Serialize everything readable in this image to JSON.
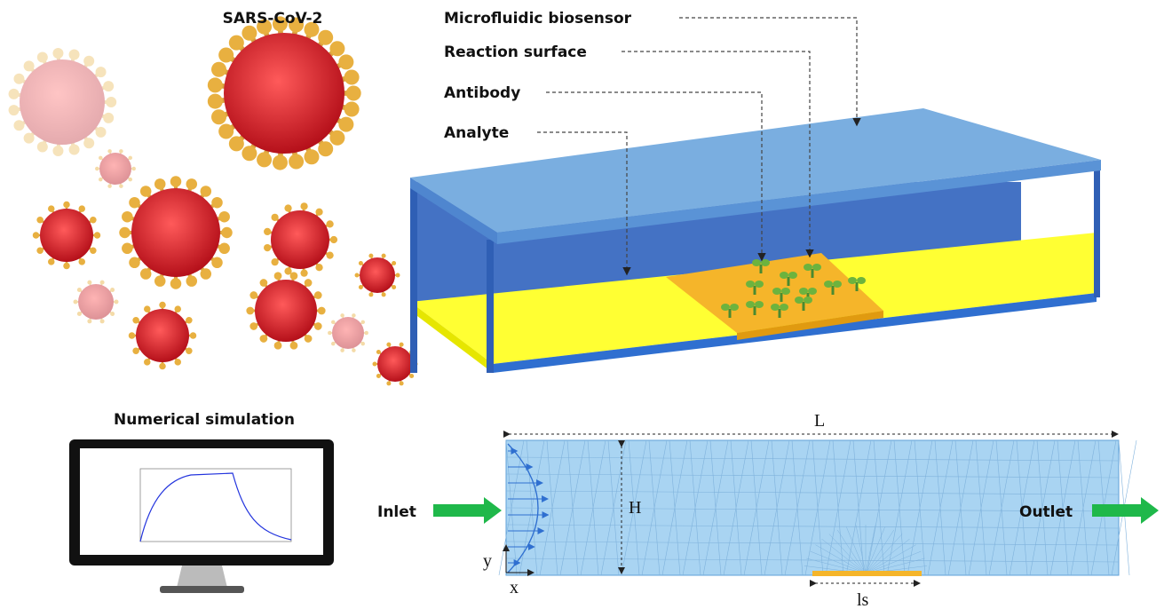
{
  "top": {
    "virus_label": "SARS-CoV-2",
    "labels": [
      "Microfluidic biosensor",
      "Reaction surface",
      "Antibody",
      "Analyte"
    ]
  },
  "bottom": {
    "simulation_label": "Numerical simulation",
    "length": "L",
    "height": "H",
    "inlet": "Inlet",
    "outlet": "Outlet",
    "axis_y": "y",
    "axis_x": "x",
    "surface_length": "ls"
  }
}
